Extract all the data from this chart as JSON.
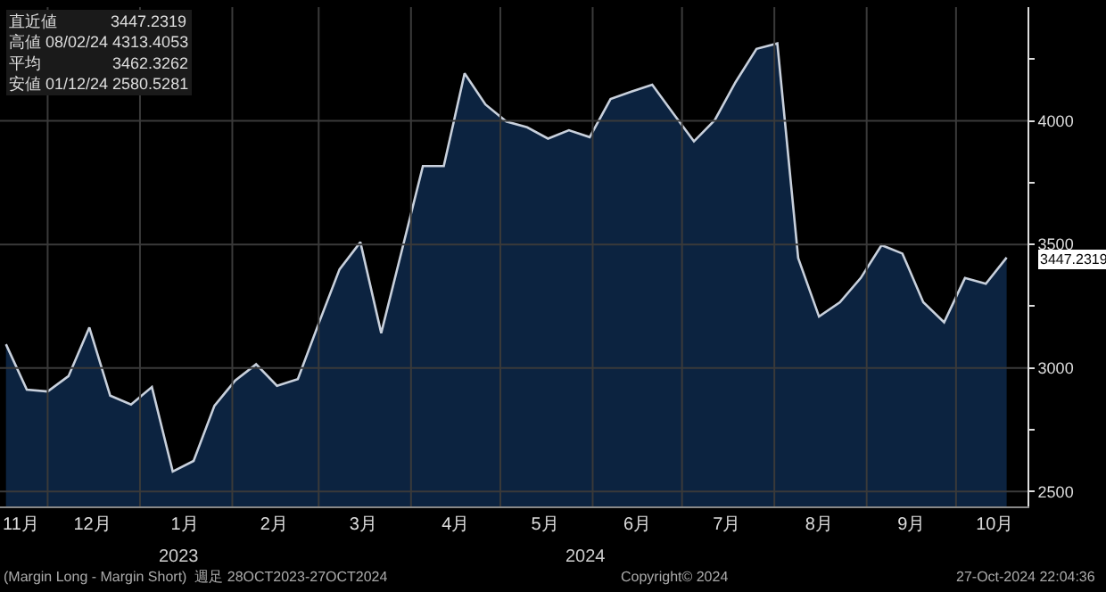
{
  "chart_data": {
    "type": "area",
    "x": [
      "2023-11-17",
      "2023-11-24",
      "2023-12-01",
      "2023-12-08",
      "2023-12-15",
      "2023-12-22",
      "2023-12-29",
      "2024-01-05",
      "2024-01-12",
      "2024-01-19",
      "2024-01-26",
      "2024-02-02",
      "2024-02-09",
      "2024-02-16",
      "2024-02-23",
      "2024-03-01",
      "2024-03-08",
      "2024-03-15",
      "2024-03-22",
      "2024-03-29",
      "2024-04-05",
      "2024-04-12",
      "2024-04-19",
      "2024-04-26",
      "2024-05-03",
      "2024-05-10",
      "2024-05-17",
      "2024-05-24",
      "2024-05-31",
      "2024-06-07",
      "2024-06-14",
      "2024-06-21",
      "2024-06-28",
      "2024-07-05",
      "2024-07-12",
      "2024-07-19",
      "2024-07-26",
      "2024-08-02",
      "2024-08-09",
      "2024-08-16",
      "2024-08-23",
      "2024-08-30",
      "2024-09-06",
      "2024-09-13",
      "2024-09-20",
      "2024-09-27",
      "2024-10-04",
      "2024-10-11",
      "2024-10-18"
    ],
    "series": [
      {
        "color": "#c8d0dc",
        "values": [
          3096,
          2912,
          2905,
          2967,
          3164,
          2888,
          2852,
          2923,
          2581,
          2624,
          2847,
          2950,
          3015,
          2928,
          2955,
          3180,
          3399,
          3509,
          3141,
          3479,
          3817,
          3817,
          4192,
          4066,
          3997,
          3974,
          3928,
          3962,
          3934,
          4088,
          4118,
          4146,
          4031,
          3917,
          4003,
          4157,
          4291,
          4313,
          3445,
          3208,
          3266,
          3364,
          3497,
          3463,
          3266,
          3185,
          3364,
          3341,
          3447
        ]
      }
    ],
    "xlim": [
      "2023-11-15",
      "2024-10-25"
    ],
    "xticks": [
      {
        "value": "2023-11-22",
        "label": "11月"
      },
      {
        "value": "2023-12-01",
        "label": null
      },
      {
        "value": "2023-12-16",
        "label": "12月"
      },
      {
        "value": "2024-01-01",
        "label": null
      },
      {
        "value": "2024-01-16",
        "label": "1月"
      },
      {
        "value": "2024-02-01",
        "label": null
      },
      {
        "value": "2024-02-15",
        "label": "2月"
      },
      {
        "value": "2024-03-01",
        "label": null
      },
      {
        "value": "2024-03-16",
        "label": "3月"
      },
      {
        "value": "2024-04-01",
        "label": null
      },
      {
        "value": "2024-04-16",
        "label": "4月"
      },
      {
        "value": "2024-05-01",
        "label": null
      },
      {
        "value": "2024-05-16",
        "label": "5月"
      },
      {
        "value": "2024-06-01",
        "label": null
      },
      {
        "value": "2024-06-16",
        "label": "6月"
      },
      {
        "value": "2024-07-01",
        "label": null
      },
      {
        "value": "2024-07-16",
        "label": "7月"
      },
      {
        "value": "2024-08-01",
        "label": null
      },
      {
        "value": "2024-08-16",
        "label": "8月"
      },
      {
        "value": "2024-09-01",
        "label": null
      },
      {
        "value": "2024-09-16",
        "label": "9月"
      },
      {
        "value": "2024-10-01",
        "label": null
      },
      {
        "value": "2024-10-14",
        "label": "10月"
      }
    ],
    "ylim": [
      2440,
      4460
    ],
    "yticks": [
      2500,
      {
        "value": 2750,
        "label": null
      },
      3000,
      {
        "value": 3250,
        "label": null
      },
      3500,
      {
        "value": 3750,
        "label": null
      },
      4000,
      {
        "value": 4250,
        "label": null
      }
    ],
    "grid": true,
    "annotations": [
      "直近値            3447.2319\n高値 08/02/24 4313.4053\n平均                3462.3262\n安値 01/12/24 2580.5281",
      {
        "text": "3447.2319",
        "x": "2024-10-18",
        "y": 3447.2319
      },
      "2023",
      "2024",
      "(Margin Long - Margin Short)  週足 28OCT2023-27OCT2024",
      "Copyright© 2024",
      "27-Oct-2024 22:04:36"
    ]
  }
}
